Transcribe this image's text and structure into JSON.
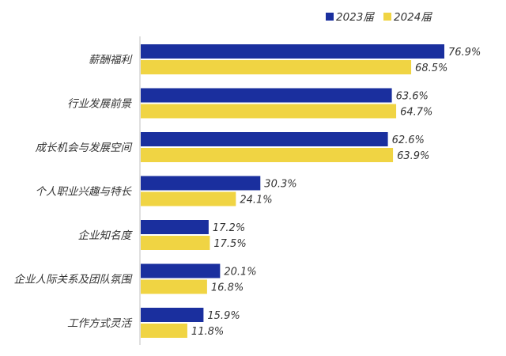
{
  "chart_data": {
    "type": "bar",
    "orientation": "horizontal",
    "categories": [
      "薪酬福利",
      "行业发展前景",
      "成长机会与发展空间",
      "个人职业兴趣与特长",
      "企业知名度",
      "企业人际关系及团队氛围",
      "工作方式灵活"
    ],
    "series": [
      {
        "name": "2023届",
        "color": "#1a2f9e",
        "values": [
          76.9,
          63.6,
          62.6,
          30.3,
          17.2,
          20.1,
          15.9
        ],
        "value_labels": [
          "76.9%",
          "63.6%",
          "62.6%",
          "30.3%",
          "17.2%",
          "20.1%",
          "15.9%"
        ]
      },
      {
        "name": "2024届",
        "color": "#f0d443",
        "values": [
          68.5,
          64.7,
          63.9,
          24.1,
          17.5,
          16.8,
          11.8
        ],
        "value_labels": [
          "68.5%",
          "64.7%",
          "63.9%",
          "24.1%",
          "17.5%",
          "16.8%",
          "11.8%"
        ]
      }
    ],
    "unit": "%",
    "xlim": [
      0,
      100
    ],
    "grid": false,
    "legend": "top-right"
  }
}
